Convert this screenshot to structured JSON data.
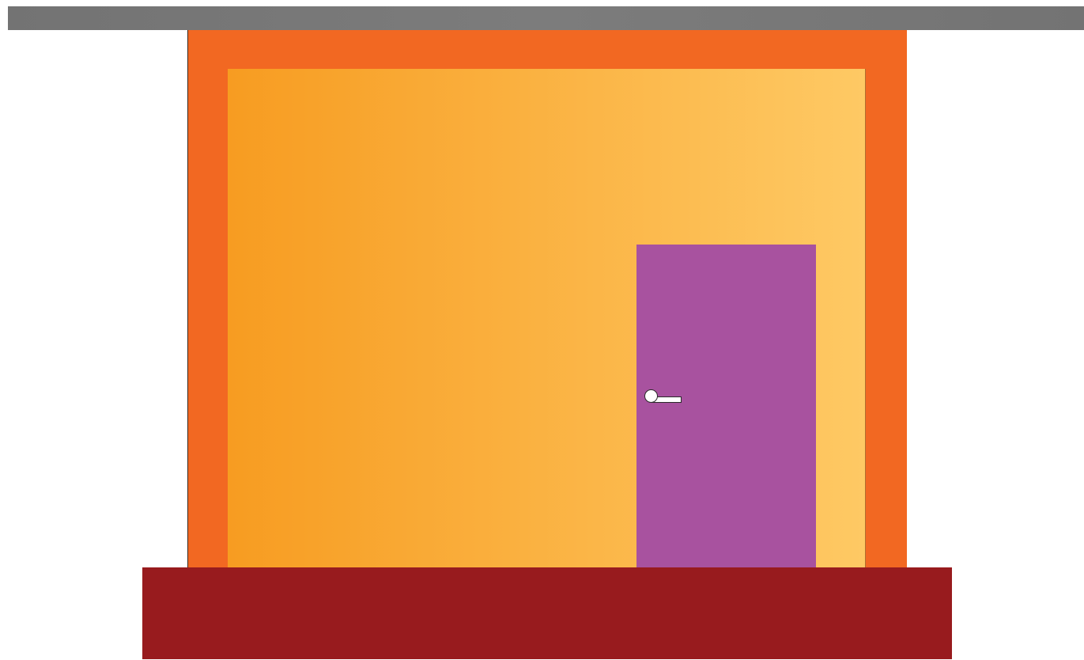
{
  "colors": {
    "background": "#ffffff",
    "roof": "#737373",
    "outer_wall": "#f26822",
    "inner_wall_left": "#f79c21",
    "inner_wall_right": "#fec964",
    "door": "#a8529f",
    "door_handle": "#ffffff",
    "base": "#981b1e"
  },
  "icons": {
    "door_knob": "door-knob-icon",
    "door_handle": "door-handle-icon"
  }
}
